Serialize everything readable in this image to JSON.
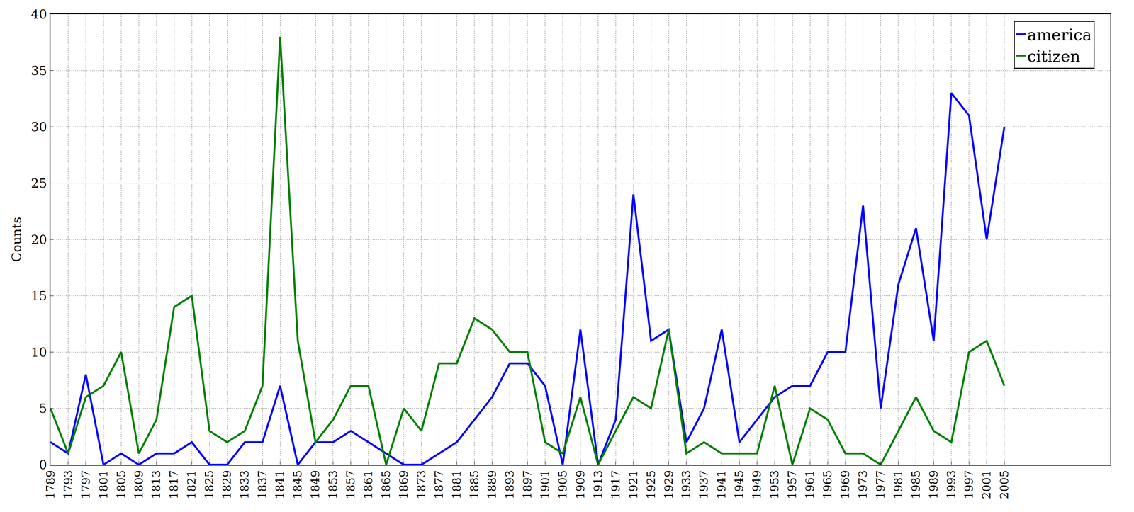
{
  "chart_data": {
    "type": "line",
    "y_label": "Counts",
    "x": [
      1789,
      1793,
      1797,
      1801,
      1805,
      1809,
      1813,
      1817,
      1821,
      1825,
      1829,
      1833,
      1837,
      1841,
      1845,
      1849,
      1853,
      1857,
      1861,
      1865,
      1869,
      1873,
      1877,
      1881,
      1885,
      1889,
      1893,
      1897,
      1901,
      1905,
      1909,
      1913,
      1917,
      1921,
      1925,
      1929,
      1933,
      1937,
      1941,
      1945,
      1949,
      1953,
      1957,
      1961,
      1965,
      1969,
      1973,
      1977,
      1981,
      1985,
      1989,
      1993,
      1997,
      2001,
      2005
    ],
    "series": [
      {
        "name": "america",
        "color": "#0000ff",
        "values": [
          2,
          1,
          8,
          0,
          1,
          0,
          1,
          1,
          2,
          0,
          0,
          2,
          2,
          7,
          0,
          2,
          2,
          3,
          2,
          1,
          0,
          0,
          1,
          2,
          4,
          6,
          9,
          9,
          7,
          0,
          12,
          0,
          4,
          24,
          11,
          12,
          2,
          5,
          12,
          2,
          4,
          6,
          7,
          7,
          10,
          10,
          23,
          5,
          16,
          21,
          11,
          33,
          31,
          20,
          30
        ]
      },
      {
        "name": "citizen",
        "color": "#008000",
        "values": [
          5,
          1,
          6,
          7,
          10,
          1,
          4,
          14,
          15,
          3,
          2,
          3,
          7,
          38,
          11,
          2,
          4,
          7,
          7,
          0,
          5,
          3,
          9,
          9,
          13,
          12,
          10,
          10,
          2,
          1,
          6,
          0,
          3,
          6,
          5,
          12,
          1,
          2,
          1,
          1,
          1,
          7,
          0,
          5,
          4,
          1,
          1,
          0,
          3,
          6,
          3,
          2,
          10,
          11,
          7
        ]
      }
    ],
    "xlim": [
      1789,
      2029
    ],
    "xticks": [
      1789,
      1793,
      1797,
      1801,
      1805,
      1809,
      1813,
      1817,
      1821,
      1825,
      1829,
      1833,
      1837,
      1841,
      1845,
      1849,
      1853,
      1857,
      1861,
      1865,
      1869,
      1873,
      1877,
      1881,
      1885,
      1889,
      1893,
      1897,
      1901,
      1905,
      1909,
      1913,
      1917,
      1921,
      1925,
      1929,
      1933,
      1937,
      1941,
      1945,
      1949,
      1953,
      1957,
      1961,
      1965,
      1969,
      1973,
      1977,
      1981,
      1985,
      1989,
      1993,
      1997,
      2001,
      2005
    ],
    "ylim": [
      0,
      40
    ],
    "yticks": [
      0,
      5,
      10,
      15,
      20,
      25,
      30,
      35,
      40
    ],
    "grid": true,
    "legend": "upper right"
  }
}
